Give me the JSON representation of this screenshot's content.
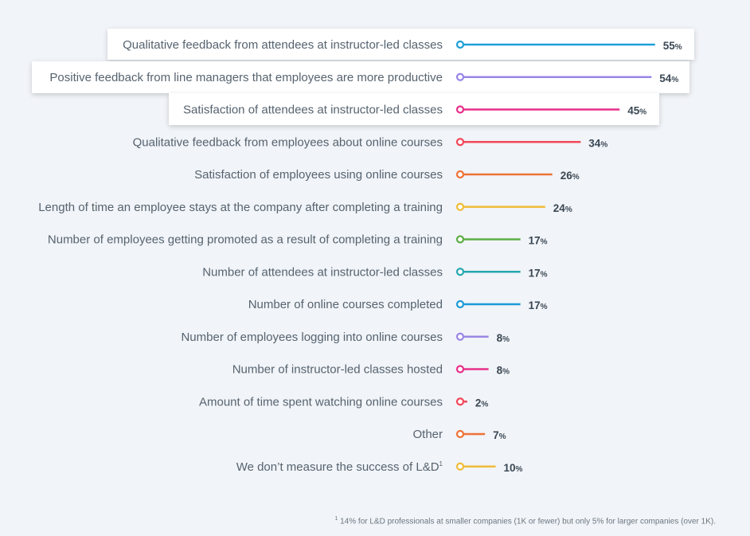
{
  "chart_data": {
    "type": "bar",
    "style": "lollipop-horizontal",
    "categories": [
      "Qualitative feedback from attendees at instructor-led classes",
      "Positive feedback from line managers that employees are more productive",
      "Satisfaction of attendees at instructor-led classes",
      "Qualitative feedback from employees about online courses",
      "Satisfaction of employees using online courses",
      "Length of time an employee stays at the company after completing a training",
      "Number of employees getting promoted as a result of completing a training",
      "Number of attendees at instructor-led classes",
      "Number of online courses completed",
      "Number of employees logging into online courses",
      "Number of instructor-led classes hosted",
      "Amount of time spent watching online courses",
      "Other",
      "We don’t measure the success of L&D"
    ],
    "label_footnote_marks": [
      "",
      "",
      "",
      "",
      "",
      "",
      "",
      "",
      "",
      "",
      "",
      "",
      "",
      "1"
    ],
    "values": [
      55,
      54,
      45,
      34,
      26,
      24,
      17,
      17,
      17,
      8,
      8,
      2,
      7,
      10
    ],
    "value_suffix": "%",
    "colors": [
      "#1ea0d7",
      "#9a86e6",
      "#e8308a",
      "#f2475a",
      "#ee7236",
      "#f0bd3a",
      "#5cae45",
      "#27a7b0",
      "#1e9ad6",
      "#9a86e6",
      "#e8308a",
      "#f2475a",
      "#ee7236",
      "#f0bd3a"
    ],
    "highlighted": [
      0,
      1,
      2
    ],
    "xlim": [
      0,
      55
    ],
    "title": "",
    "xlabel": "",
    "ylabel": ""
  },
  "footnote": {
    "mark": "1",
    "text": "14% for L&D professionals at smaller companies (1K or fewer) but only 5% for larger companies (over 1K)."
  }
}
